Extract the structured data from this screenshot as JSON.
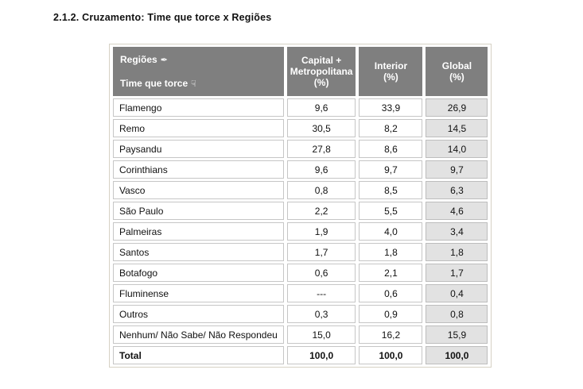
{
  "page": {
    "title": "2.1.2. Cruzamento: Time que torce x Regiões"
  },
  "icons": {
    "column_pointer": "✒",
    "row_pointer": "☟"
  },
  "colors": {
    "header_bg": "#7f7f7f",
    "header_text": "#ffffff",
    "global_column_bg": "#e2e2e2",
    "cell_border": "#c6c6c6",
    "outer_border": "#d6d1c4"
  },
  "table": {
    "corner": {
      "col_var": "Regiões",
      "row_var": "Time que torce"
    },
    "columns": [
      {
        "name": "Capital + Metropolitana",
        "unit": "(%)"
      },
      {
        "name": "Interior",
        "unit": "(%)"
      },
      {
        "name": "Global",
        "unit": "(%)"
      }
    ],
    "rows": [
      {
        "label": "Flamengo",
        "capital": "9,6",
        "interior": "33,9",
        "global": "26,9"
      },
      {
        "label": "Remo",
        "capital": "30,5",
        "interior": "8,2",
        "global": "14,5"
      },
      {
        "label": "Paysandu",
        "capital": "27,8",
        "interior": "8,6",
        "global": "14,0"
      },
      {
        "label": "Corinthians",
        "capital": "9,6",
        "interior": "9,7",
        "global": "9,7"
      },
      {
        "label": "Vasco",
        "capital": "0,8",
        "interior": "8,5",
        "global": "6,3"
      },
      {
        "label": "São Paulo",
        "capital": "2,2",
        "interior": "5,5",
        "global": "4,6"
      },
      {
        "label": "Palmeiras",
        "capital": "1,9",
        "interior": "4,0",
        "global": "3,4"
      },
      {
        "label": "Santos",
        "capital": "1,7",
        "interior": "1,8",
        "global": "1,8"
      },
      {
        "label": "Botafogo",
        "capital": "0,6",
        "interior": "2,1",
        "global": "1,7"
      },
      {
        "label": "Fluminense",
        "capital": "---",
        "interior": "0,6",
        "global": "0,4"
      },
      {
        "label": "Outros",
        "capital": "0,3",
        "interior": "0,9",
        "global": "0,8"
      },
      {
        "label": "Nenhum/ Não Sabe/ Não Respondeu",
        "capital": "15,0",
        "interior": "16,2",
        "global": "15,9"
      }
    ],
    "total": {
      "label": "Total",
      "capital": "100,0",
      "interior": "100,0",
      "global": "100,0"
    }
  }
}
